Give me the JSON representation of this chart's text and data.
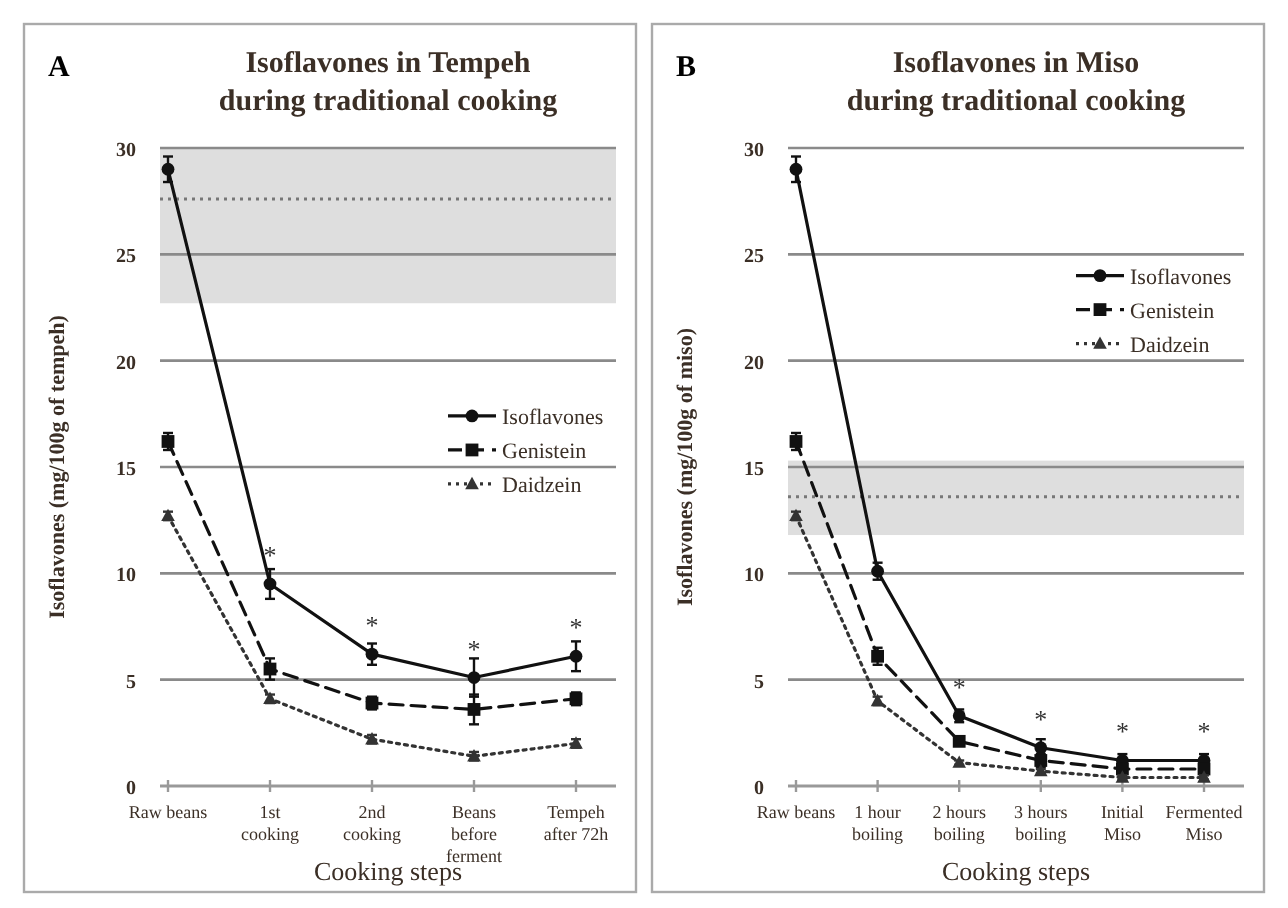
{
  "chart_data": [
    {
      "type": "line",
      "title": "Isoflavones in Tempeh\nduring traditional cooking",
      "xlabel": "Cooking steps",
      "ylabel": "Isoflavones (mg/100g of tempeh)",
      "categories": [
        "Raw beans",
        "1st cooking",
        "2nd cooking",
        "Beans before ferment",
        "Tempeh after 72h"
      ],
      "series": [
        {
          "name": "Isoflavones",
          "color": "#111111",
          "marker": "circle",
          "line_style": "solid",
          "values": [
            29,
            9.5,
            6.2,
            5.1,
            6.1
          ],
          "errors": [
            0.6,
            0.7,
            0.5,
            0.9,
            0.7
          ]
        },
        {
          "name": "Genistein",
          "color": "#111111",
          "marker": "square",
          "line_style": "dashed",
          "values": [
            16.2,
            5.5,
            3.9,
            3.6,
            4.1
          ],
          "errors": [
            0.4,
            0.5,
            0.3,
            0.7,
            0.3
          ]
        },
        {
          "name": "Daidzein",
          "color": "#333333",
          "marker": "triangle",
          "line_style": "dotted",
          "values": [
            12.7,
            4.1,
            2.2,
            1.4,
            2.0
          ],
          "errors": [
            0.2,
            0.2,
            0.2,
            0.2,
            0.2
          ]
        }
      ],
      "ylim": [
        0,
        30
      ],
      "yticks": [
        0,
        5,
        10,
        15,
        20,
        25,
        30
      ],
      "grid": "y",
      "legend": "right",
      "bands": [
        {
          "axis": "y",
          "from": 22.7,
          "to": 30,
          "color": "#dedede"
        }
      ],
      "ref_lines": [
        {
          "axis": "y",
          "value": 27.6,
          "color": "#777777",
          "line_style": "dotted"
        }
      ],
      "annotations": [
        "A",
        {
          "text": "*",
          "x": "1st cooking",
          "y": 9.5
        },
        {
          "text": "*",
          "x": "2nd cooking",
          "y": 6.2
        },
        {
          "text": "*",
          "x": "Beans before ferment",
          "y": 5.1
        },
        {
          "text": "*",
          "x": "Tempeh after 72h",
          "y": 6.1
        }
      ]
    },
    {
      "type": "line",
      "title": "Isoflavones in Miso\nduring traditional cooking",
      "xlabel": "Cooking steps",
      "ylabel": "Isoflavones (mg/100g of miso)",
      "categories": [
        "Raw beans",
        "1 hour boiling",
        "2 hours boiling",
        "3 hours boiling",
        "Initial Miso",
        "Fermented Miso"
      ],
      "series": [
        {
          "name": "Isoflavones",
          "color": "#111111",
          "marker": "circle",
          "line_style": "solid",
          "values": [
            29,
            10.1,
            3.3,
            1.8,
            1.2,
            1.2
          ],
          "errors": [
            0.6,
            0.4,
            0.3,
            0.4,
            0.3,
            0.3
          ]
        },
        {
          "name": "Genistein",
          "color": "#111111",
          "marker": "square",
          "line_style": "dashed",
          "values": [
            16.2,
            6.1,
            2.1,
            1.2,
            0.8,
            0.8
          ],
          "errors": [
            0.4,
            0.4,
            0.2,
            0.3,
            0.2,
            0.2
          ]
        },
        {
          "name": "Daidzein",
          "color": "#333333",
          "marker": "triangle",
          "line_style": "dotted",
          "values": [
            12.7,
            4.0,
            1.1,
            0.7,
            0.4,
            0.4
          ],
          "errors": [
            0.2,
            0.2,
            0.1,
            0.1,
            0.1,
            0.1
          ]
        }
      ],
      "ylim": [
        0,
        30
      ],
      "yticks": [
        0,
        5,
        10,
        15,
        20,
        25,
        30
      ],
      "grid": "y",
      "legend": "top right",
      "bands": [
        {
          "axis": "y",
          "from": 11.8,
          "to": 15.3,
          "color": "#dedede"
        }
      ],
      "ref_lines": [
        {
          "axis": "y",
          "value": 13.6,
          "color": "#777777",
          "line_style": "dotted"
        }
      ],
      "annotations": [
        "B",
        {
          "text": "*",
          "x": "2 hours boiling",
          "y": 3.3
        },
        {
          "text": "*",
          "x": "3 hours boiling",
          "y": 1.8
        },
        {
          "text": "*",
          "x": "Initial Miso",
          "y": 1.2
        },
        {
          "text": "*",
          "x": "Fermented Miso",
          "y": 1.2
        }
      ]
    }
  ]
}
